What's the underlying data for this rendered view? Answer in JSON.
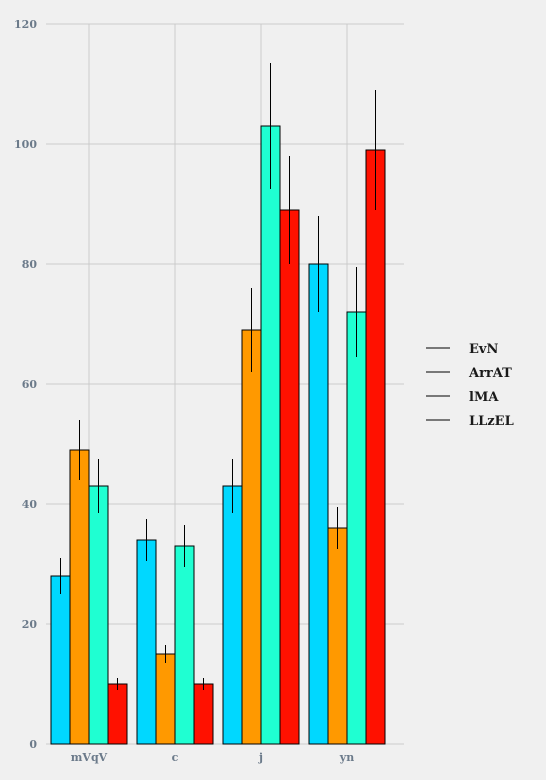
{
  "chart_data": {
    "type": "bar",
    "categories": [
      "mVqV",
      "c",
      "j",
      "yn"
    ],
    "series": [
      {
        "name": "EvN",
        "color": "#00d8ff",
        "values": [
          28,
          34,
          43,
          80
        ],
        "errors": [
          3,
          3.5,
          4.5,
          8
        ]
      },
      {
        "name": "ArrAT",
        "color": "#ff9900",
        "values": [
          49,
          15,
          69,
          36
        ],
        "errors": [
          5,
          1.5,
          7,
          3.5
        ]
      },
      {
        "name": "lMA",
        "color": "#1fffd2",
        "values": [
          43,
          33,
          103,
          72
        ],
        "errors": [
          4.5,
          3.5,
          10.5,
          7.5
        ]
      },
      {
        "name": "LLzEL",
        "color": "#ff1100",
        "values": [
          10,
          10,
          89,
          99
        ],
        "errors": [
          1,
          1,
          9,
          10
        ]
      }
    ],
    "ylim": [
      0,
      120
    ],
    "yticks": [
      0,
      20,
      40,
      60,
      80,
      100,
      120
    ],
    "title": "",
    "xlabel": "",
    "ylabel": "",
    "grid": true,
    "legend_position": "right"
  }
}
